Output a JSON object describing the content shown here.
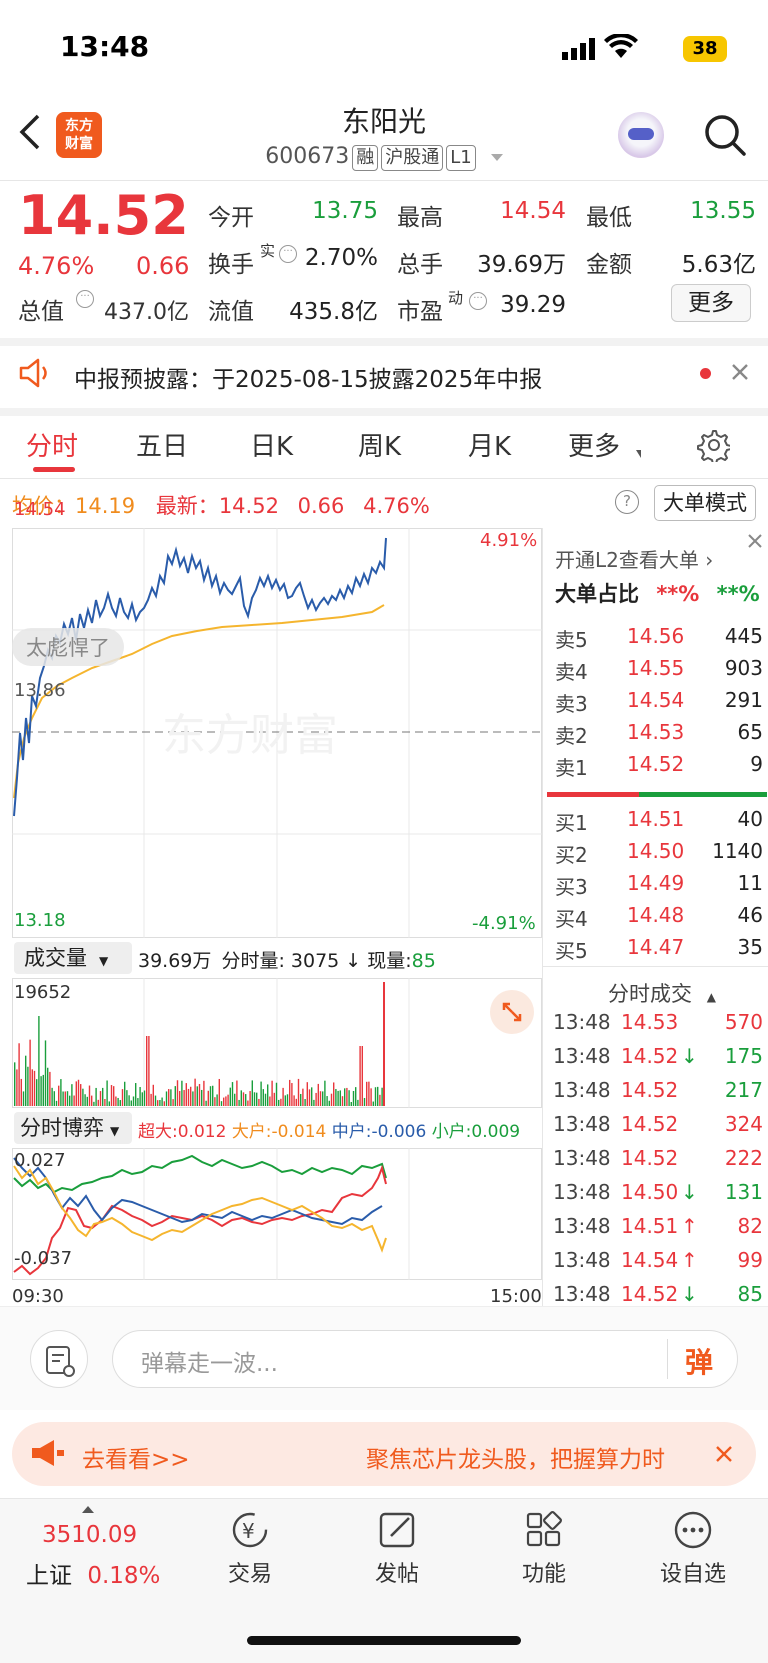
{
  "status_bar": {
    "time": "13:48",
    "battery": "38"
  },
  "header": {
    "logo_line1": "东方",
    "logo_line2": "财富",
    "title": "东阳光",
    "code": "600673",
    "tags": [
      "融",
      "沪股通",
      "L1"
    ]
  },
  "quote": {
    "price": "14.52",
    "change_pct": "4.76%",
    "change": "0.66",
    "open_label": "今开",
    "open": "13.75",
    "high_label": "最高",
    "high": "14.54",
    "low_label": "最低",
    "low": "13.55",
    "turnover_label": "换手",
    "turnover_sup": "实",
    "turnover": "2.70%",
    "volume_label": "总手",
    "volume": "39.69万",
    "amount_label": "金额",
    "amount": "5.63亿",
    "mktcap_label": "总值",
    "mktcap": "437.0亿",
    "float_label": "流值",
    "float": "435.8亿",
    "pe_label": "市盈",
    "pe_sup": "动",
    "pe": "39.29",
    "more": "更多"
  },
  "notice": {
    "text": "中报预披露：于2025-08-15披露2025年中报"
  },
  "tabs": [
    "分时",
    "五日",
    "日K",
    "周K",
    "月K",
    "更多"
  ],
  "info": {
    "avg_label": "均价：",
    "avg": "14.19",
    "latest_label": "最新：",
    "latest": "14.52",
    "chg": "0.66",
    "pct": "4.76%",
    "mode_btn": "大单模式"
  },
  "chart": {
    "y_top": "14.54",
    "y_mid": "13.86",
    "y_bot": "13.18",
    "pct_top": "4.91%",
    "pct_bot": "-4.91%",
    "bubble": "太彪悍了",
    "watermark": "东方财富",
    "vol_selector": "成交量",
    "vol_total": "39.69万",
    "vol_sub": "分时量: 3075",
    "vol_now_label": "现量:",
    "vol_now": "85",
    "vol_max": "19652",
    "game_selector": "分时博弈",
    "super_label": "超大:0.012",
    "large_label": "大户:-0.014",
    "mid_label": "中户:-0.006",
    "small_label": "小户:0.009",
    "game_top": "0.027",
    "game_bot": "-0.037",
    "time_start": "09:30",
    "time_end": "15:00"
  },
  "side": {
    "l2_link": "开通L2查看大单",
    "ratio_label": "大单占比",
    "ratio_red": "**%",
    "ratio_green": "**%",
    "asks": [
      [
        "卖5",
        "14.56",
        "445"
      ],
      [
        "卖4",
        "14.55",
        "903"
      ],
      [
        "卖3",
        "14.54",
        "291"
      ],
      [
        "卖2",
        "14.53",
        "65"
      ],
      [
        "卖1",
        "14.52",
        "9"
      ]
    ],
    "bids": [
      [
        "买1",
        "14.51",
        "40"
      ],
      [
        "买2",
        "14.50",
        "1140"
      ],
      [
        "买3",
        "14.49",
        "11"
      ],
      [
        "买4",
        "14.48",
        "46"
      ],
      [
        "买5",
        "14.47",
        "35"
      ]
    ],
    "ticks_title": "分时成交",
    "ticks": [
      [
        "13:48",
        "14.53",
        "",
        "570"
      ],
      [
        "13:48",
        "14.52",
        "↓",
        "175"
      ],
      [
        "13:48",
        "14.52",
        "",
        "217"
      ],
      [
        "13:48",
        "14.52",
        "",
        "324"
      ],
      [
        "13:48",
        "14.52",
        "",
        "222"
      ],
      [
        "13:48",
        "14.50",
        "↓",
        "131"
      ],
      [
        "13:48",
        "14.51",
        "↑",
        "82"
      ],
      [
        "13:48",
        "14.54",
        "↑",
        "99"
      ],
      [
        "13:48",
        "14.52",
        "↓",
        "85"
      ]
    ]
  },
  "comment": {
    "placeholder": "弹幕走一波...",
    "send": "弹"
  },
  "ad": {
    "left": "去看看>>",
    "right": "聚焦芯片龙头股，把握算力时"
  },
  "bottom_nav": {
    "index_value": "3510.09",
    "index_name": "上证",
    "index_pct": "0.18%",
    "items": [
      "交易",
      "发帖",
      "功能",
      "设自选"
    ]
  }
}
